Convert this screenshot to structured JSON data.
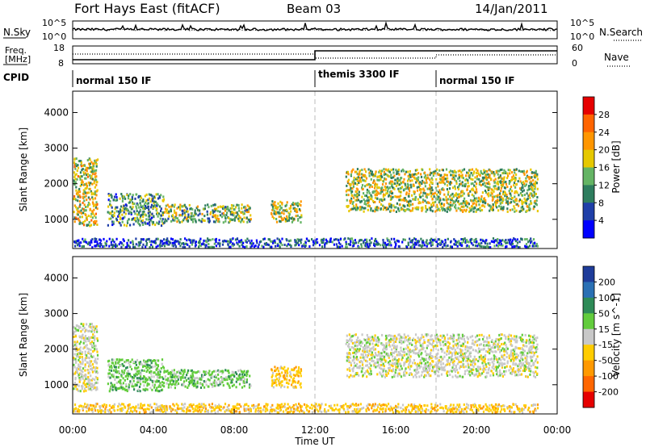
{
  "header": {
    "title": "Fort Hays East (fitACF)",
    "beam": "Beam 03",
    "date": "14/Jan/2011"
  },
  "noise_panel": {
    "left_label": "N.Sky",
    "right_label": "N.Search",
    "left_ticks": [
      "10^5",
      "10^0"
    ],
    "right_ticks": [
      "10^5",
      "10^0"
    ]
  },
  "freq_panel": {
    "left_label_line1": "Freq.",
    "left_label_line2": "[MHz]",
    "right_label": "Nave",
    "left_ticks": [
      "18",
      "8"
    ],
    "right_ticks": [
      "60",
      "0"
    ]
  },
  "cpid_panel": {
    "label": "CPID",
    "segments": [
      {
        "name": "normal 150 IF",
        "start": 0,
        "end": 12
      },
      {
        "name": "themis 3300 IF",
        "start": 12,
        "end": 18
      },
      {
        "name": "normal 150 IF",
        "start": 18,
        "end": 24
      }
    ]
  },
  "chart_data": [
    {
      "type": "heatmap",
      "name": "power",
      "ylabel": "Slant Range [km]",
      "yticks": [
        "1000",
        "2000",
        "3000",
        "4000"
      ],
      "ylim": [
        180,
        4600
      ],
      "xlim": [
        0,
        24
      ],
      "colorbar_label": "Power [dB]",
      "colorbar_ticks": [
        "4",
        "8",
        "12",
        "16",
        "20",
        "24",
        "28"
      ],
      "colorbar_colors": [
        "#0000ff",
        "#1f3fa8",
        "#2e7d5e",
        "#64b464",
        "#e6c800",
        "#ff9600",
        "#ff6400",
        "#e60000"
      ],
      "echo_regions": [
        {
          "t0": 0.0,
          "t1": 1.2,
          "r0": 800,
          "r1": 2700,
          "level": 0.55
        },
        {
          "t0": 1.7,
          "t1": 4.5,
          "r0": 800,
          "r1": 1700,
          "level": 0.35
        },
        {
          "t0": 4.5,
          "t1": 8.8,
          "r0": 900,
          "r1": 1400,
          "level": 0.45
        },
        {
          "t0": 9.8,
          "t1": 11.3,
          "r0": 900,
          "r1": 1500,
          "level": 0.5
        },
        {
          "t0": 13.5,
          "t1": 23.0,
          "r0": 1200,
          "r1": 2400,
          "level": 0.5
        },
        {
          "t0": 0.0,
          "t1": 23.0,
          "r0": 200,
          "r1": 450,
          "level": 0.2
        }
      ]
    },
    {
      "type": "heatmap",
      "name": "velocity",
      "ylabel": "Slant Range [km]",
      "yticks": [
        "1000",
        "2000",
        "3000",
        "4000"
      ],
      "ylim": [
        180,
        4600
      ],
      "xlim": [
        0,
        24
      ],
      "xticks": [
        "00:00",
        "04:00",
        "08:00",
        "12:00",
        "16:00",
        "20:00",
        "00:00"
      ],
      "xlabel": "Time UT",
      "colorbar_label": "Velocity [m s^-1]",
      "colorbar_ticks": [
        "200",
        "100",
        "50",
        "15",
        "-15",
        "-50",
        "-100",
        "-200"
      ],
      "colorbar_colors": [
        "#1e3c9a",
        "#2a70b4",
        "#2e8b57",
        "#62cc3c",
        "#c8c8c8",
        "#ffcc00",
        "#ff9900",
        "#ff6600",
        "#e60000"
      ],
      "echo_regions": [
        {
          "t0": 0.0,
          "t1": 1.2,
          "r0": 800,
          "r1": 2700,
          "class": "ground"
        },
        {
          "t0": 1.7,
          "t1": 4.5,
          "r0": 800,
          "r1": 1700,
          "class": "positive"
        },
        {
          "t0": 4.5,
          "t1": 8.8,
          "r0": 900,
          "r1": 1400,
          "class": "positive"
        },
        {
          "t0": 9.8,
          "t1": 11.3,
          "r0": 900,
          "r1": 1500,
          "class": "negative"
        },
        {
          "t0": 13.5,
          "t1": 23.0,
          "r0": 1200,
          "r1": 2400,
          "class": "ground"
        },
        {
          "t0": 0.0,
          "t1": 23.0,
          "r0": 200,
          "r1": 450,
          "class": "negative"
        }
      ]
    }
  ]
}
